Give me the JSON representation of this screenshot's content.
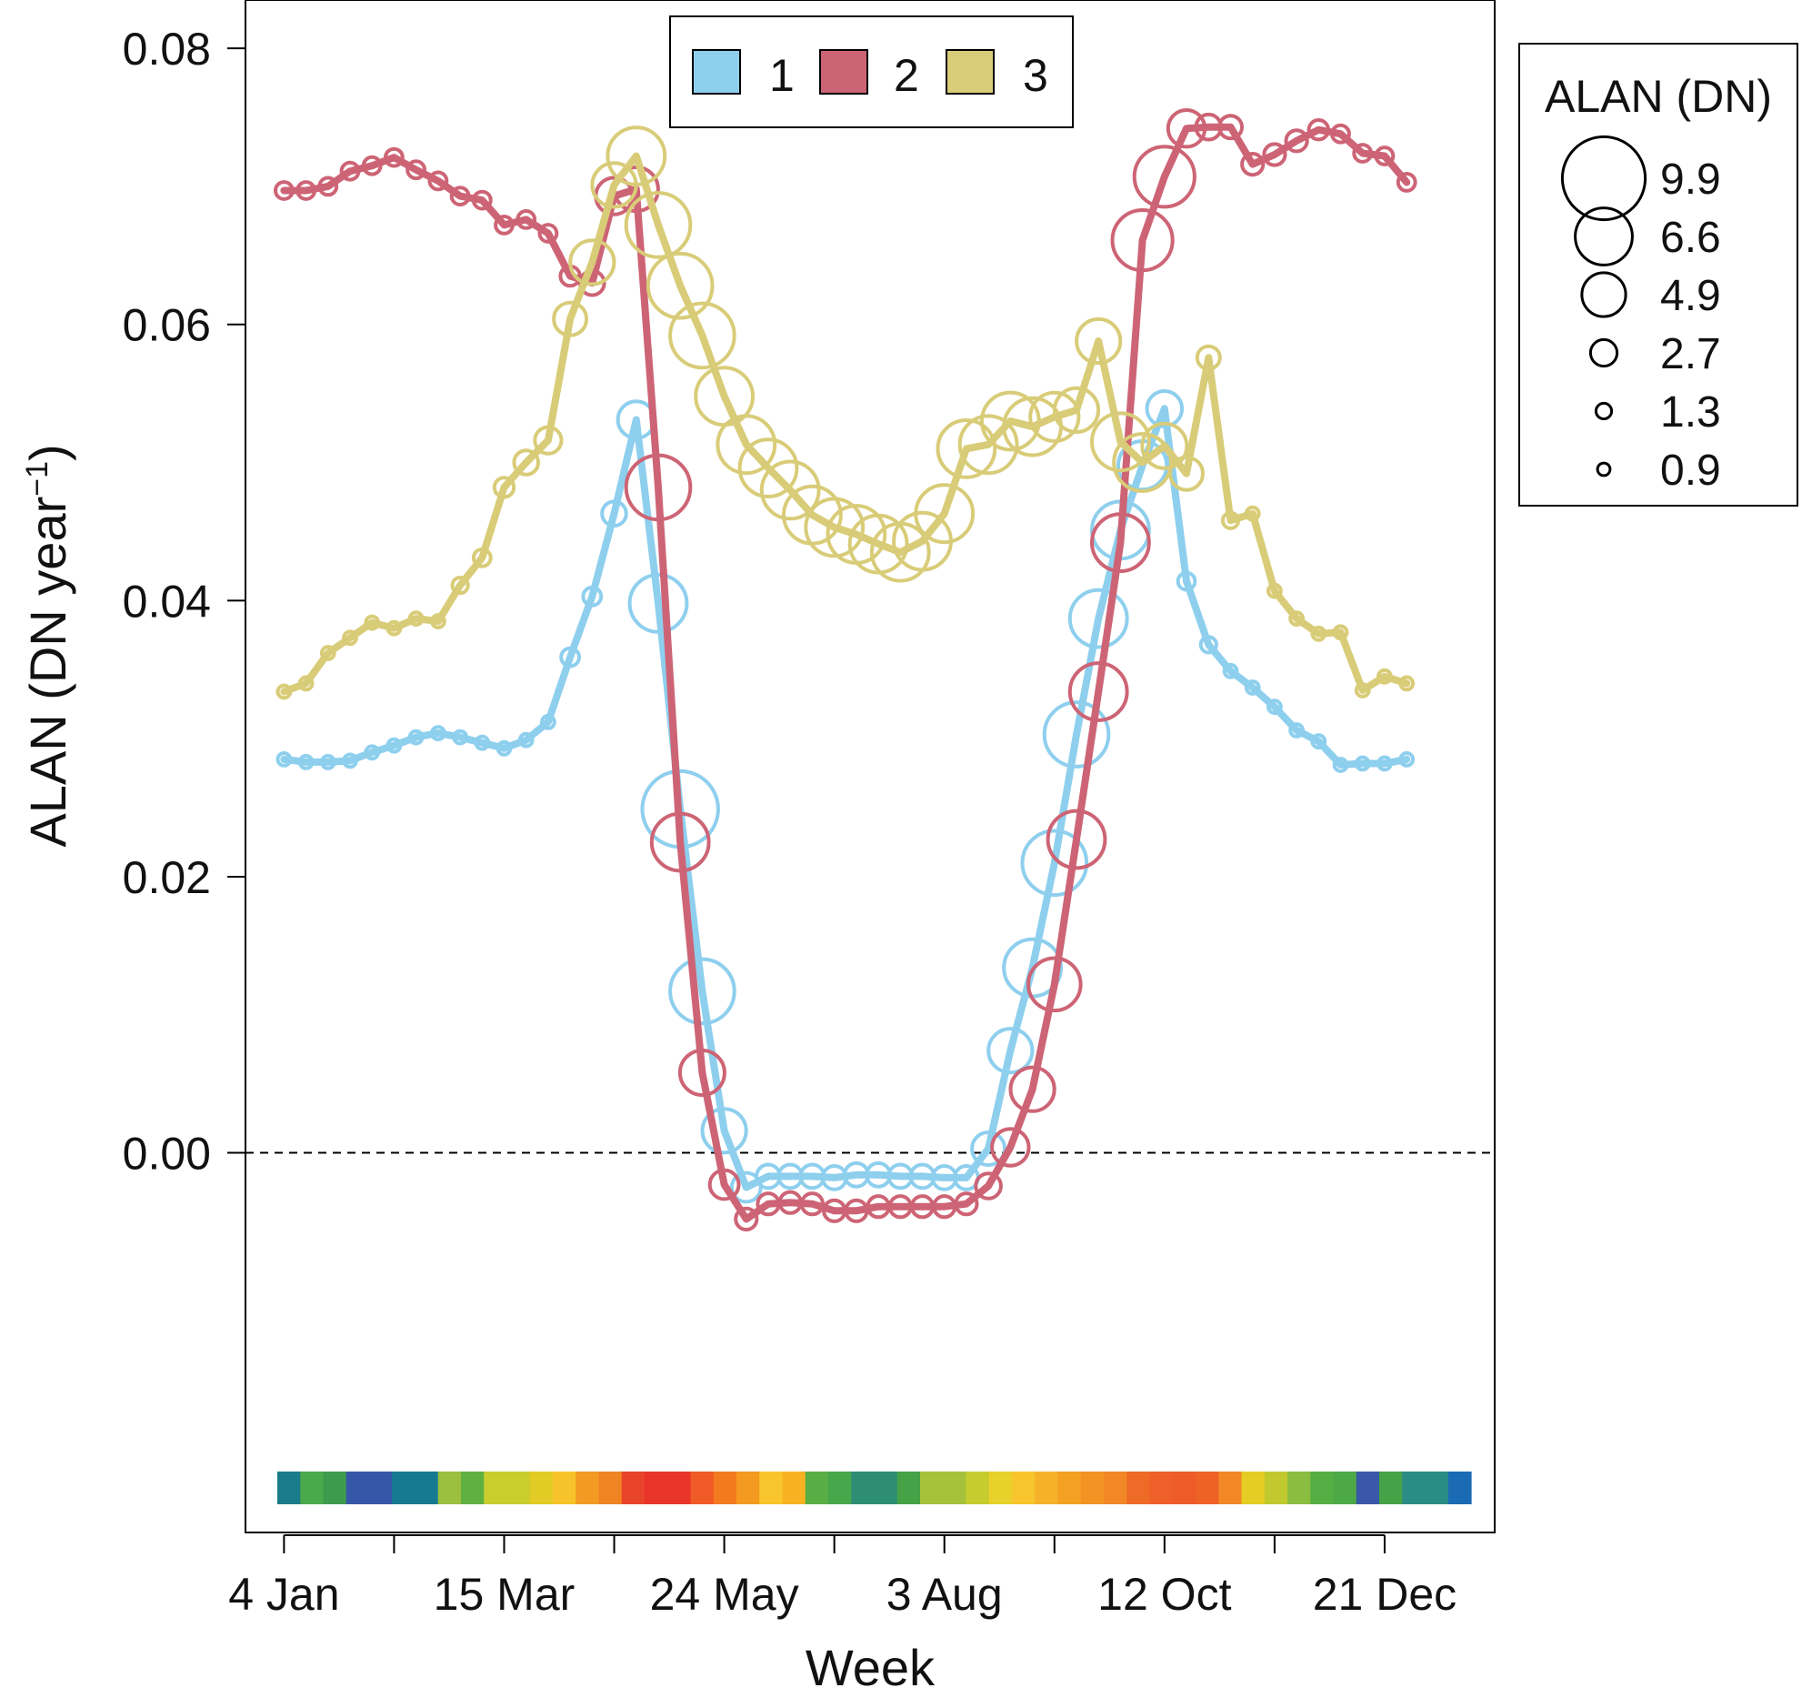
{
  "chart_data": {
    "type": "line",
    "xlabel": "Week",
    "ylabel_main": "ALAN (DN  year",
    "ylabel_sup": "−1",
    "ylabel_close": ")",
    "ylim": [
      -0.0275,
      0.0835
    ],
    "xlim": [
      -0.35,
      11.0
    ],
    "zero_line": 0,
    "yticks": [
      {
        "value": 0.0,
        "label": "0.00"
      },
      {
        "value": 0.02,
        "label": "0.02"
      },
      {
        "value": 0.04,
        "label": "0.04"
      },
      {
        "value": 0.06,
        "label": "0.06"
      },
      {
        "value": 0.08,
        "label": "0.08"
      }
    ],
    "xticks": [
      {
        "value": 0,
        "label": "4 Jan"
      },
      {
        "value": 1,
        "label": ""
      },
      {
        "value": 2,
        "label": "15 Mar"
      },
      {
        "value": 3,
        "label": ""
      },
      {
        "value": 4,
        "label": "24 May"
      },
      {
        "value": 5,
        "label": ""
      },
      {
        "value": 6,
        "label": "3 Aug"
      },
      {
        "value": 7,
        "label": ""
      },
      {
        "value": 8,
        "label": "12 Oct"
      },
      {
        "value": 9,
        "label": ""
      },
      {
        "value": 10,
        "label": "21 Dec"
      }
    ],
    "series_legend_title": "",
    "series": [
      {
        "name": "1",
        "color": "#8ecfee",
        "x": [
          0,
          0.2,
          0.4,
          0.6,
          0.8,
          1.0,
          1.2,
          1.4,
          1.6,
          1.8,
          2.0,
          2.2,
          2.4,
          2.6,
          2.8,
          3.0,
          3.2,
          3.4,
          3.6,
          3.8,
          4.0,
          4.2,
          4.4,
          4.6,
          4.8,
          5.0,
          5.2,
          5.4,
          5.6,
          5.8,
          6.0,
          6.2,
          6.4,
          6.6,
          6.8,
          7.0,
          7.2,
          7.4,
          7.6,
          7.8,
          8.0,
          8.2,
          8.4,
          8.6,
          8.8,
          9.0,
          9.2,
          9.4,
          9.6,
          9.8,
          10.0,
          10.2
        ],
        "y": [
          0.0285,
          0.0283,
          0.0283,
          0.0284,
          0.029,
          0.0295,
          0.0301,
          0.0304,
          0.0301,
          0.0297,
          0.0293,
          0.0299,
          0.0312,
          0.0359,
          0.0403,
          0.0463,
          0.0531,
          0.0398,
          0.0249,
          0.0117,
          0.0016,
          -0.0025,
          -0.0017,
          -0.0017,
          -0.0017,
          -0.0018,
          -0.0016,
          -0.0016,
          -0.0017,
          -0.0017,
          -0.0018,
          -0.0018,
          0.0003,
          0.0074,
          0.0134,
          0.021,
          0.0303,
          0.0387,
          0.0451,
          0.0498,
          0.0539,
          0.0414,
          0.0368,
          0.0349,
          0.0337,
          0.0323,
          0.0306,
          0.0298,
          0.0281,
          0.0282,
          0.0282,
          0.0285
        ],
        "sizes": [
          0.9,
          0.9,
          0.9,
          0.9,
          0.9,
          0.9,
          0.9,
          0.9,
          0.9,
          0.9,
          0.9,
          0.9,
          0.9,
          1.6,
          1.6,
          2.4,
          4.0,
          6.6,
          9.0,
          7.5,
          4.9,
          3.0,
          2.3,
          2.3,
          2.3,
          2.3,
          2.3,
          2.3,
          2.3,
          2.3,
          2.3,
          2.3,
          3.5,
          4.9,
          6.6,
          7.5,
          7.5,
          6.6,
          6.6,
          5.5,
          3.8,
          1.5,
          1.3,
          0.9,
          0.9,
          0.9,
          0.9,
          0.9,
          0.9,
          0.9,
          0.9,
          0.9
        ]
      },
      {
        "name": "2",
        "color": "#cd6475",
        "x": [
          0,
          0.2,
          0.4,
          0.6,
          0.8,
          1.0,
          1.2,
          1.4,
          1.6,
          1.8,
          2.0,
          2.2,
          2.4,
          2.6,
          2.8,
          3.0,
          3.2,
          3.4,
          3.6,
          3.8,
          4.0,
          4.2,
          4.4,
          4.6,
          4.8,
          5.0,
          5.2,
          5.4,
          5.6,
          5.8,
          6.0,
          6.2,
          6.4,
          6.6,
          6.8,
          7.0,
          7.2,
          7.4,
          7.6,
          7.8,
          8.0,
          8.2,
          8.4,
          8.6,
          8.8,
          9.0,
          9.2,
          9.4,
          9.6,
          9.8,
          10.0,
          10.2
        ],
        "y": [
          0.0697,
          0.0697,
          0.07,
          0.0711,
          0.0715,
          0.0721,
          0.0712,
          0.0704,
          0.0693,
          0.069,
          0.0672,
          0.0676,
          0.0666,
          0.0635,
          0.063,
          0.0693,
          0.0698,
          0.0482,
          0.0225,
          0.0058,
          -0.0023,
          -0.0048,
          -0.0037,
          -0.0036,
          -0.0037,
          -0.0042,
          -0.0042,
          -0.0039,
          -0.0039,
          -0.0039,
          -0.0039,
          -0.0037,
          -0.0024,
          0.0004,
          0.0046,
          0.0122,
          0.0227,
          0.0334,
          0.0442,
          0.0661,
          0.0707,
          0.0742,
          0.0743,
          0.0743,
          0.0716,
          0.0723,
          0.0733,
          0.0741,
          0.0738,
          0.0724,
          0.0722,
          0.0703
        ],
        "sizes": [
          1.5,
          1.5,
          1.5,
          1.5,
          1.5,
          1.5,
          1.5,
          1.5,
          1.5,
          1.5,
          1.5,
          1.5,
          1.5,
          1.8,
          2.4,
          4.0,
          4.9,
          7.5,
          6.6,
          5.0,
          3.0,
          2.0,
          2.0,
          2.0,
          2.0,
          2.0,
          2.0,
          2.0,
          2.0,
          2.0,
          2.0,
          2.0,
          2.5,
          4.0,
          4.9,
          6.0,
          6.6,
          6.6,
          6.6,
          7.0,
          7.0,
          4.0,
          2.5,
          2.2,
          2.0,
          2.0,
          2.0,
          1.8,
          1.5,
          1.5,
          1.5,
          1.5
        ]
      },
      {
        "name": "3",
        "color": "#d9cc78",
        "x": [
          0,
          0.2,
          0.4,
          0.6,
          0.8,
          1.0,
          1.2,
          1.4,
          1.6,
          1.8,
          2.0,
          2.2,
          2.4,
          2.6,
          2.8,
          3.0,
          3.2,
          3.4,
          3.6,
          3.8,
          4.0,
          4.2,
          4.4,
          4.6,
          4.8,
          5.0,
          5.2,
          5.4,
          5.6,
          5.8,
          6.0,
          6.2,
          6.4,
          6.6,
          6.8,
          7.0,
          7.2,
          7.4,
          7.6,
          7.8,
          8.0,
          8.2,
          8.4,
          8.6,
          8.8,
          9.0,
          9.2,
          9.4,
          9.6,
          9.8,
          10.0,
          10.2
        ],
        "y": [
          0.0334,
          0.034,
          0.0362,
          0.0373,
          0.0384,
          0.038,
          0.0387,
          0.0385,
          0.0411,
          0.0431,
          0.0482,
          0.05,
          0.0516,
          0.0604,
          0.0645,
          0.0701,
          0.0722,
          0.0672,
          0.0628,
          0.0592,
          0.0548,
          0.0513,
          0.0496,
          0.048,
          0.0462,
          0.0453,
          0.0448,
          0.0441,
          0.0435,
          0.0443,
          0.0463,
          0.051,
          0.0513,
          0.053,
          0.0526,
          0.0533,
          0.0538,
          0.0588,
          0.0515,
          0.05,
          0.0512,
          0.0492,
          0.0576,
          0.0458,
          0.0463,
          0.0407,
          0.0387,
          0.0376,
          0.0377,
          0.0335,
          0.0345,
          0.034
        ],
        "sizes": [
          0.9,
          0.9,
          0.9,
          0.9,
          0.9,
          0.9,
          0.9,
          0.9,
          1.3,
          1.5,
          1.8,
          2.4,
          2.7,
          3.5,
          4.9,
          4.9,
          6.6,
          7.5,
          7.5,
          7.5,
          6.6,
          6.6,
          6.6,
          6.6,
          6.6,
          6.6,
          6.6,
          6.6,
          6.6,
          6.6,
          6.6,
          6.6,
          6.6,
          6.6,
          6.6,
          5.5,
          4.9,
          4.9,
          6.6,
          6.6,
          5.0,
          3.5,
          2.2,
          1.3,
          0.9,
          0.9,
          0.9,
          0.9,
          0.9,
          0.9,
          0.9,
          0.9
        ]
      }
    ],
    "size_legend": {
      "title": "ALAN (DN)",
      "entries": [
        {
          "label": "9.9",
          "value": 9.9
        },
        {
          "label": "6.6",
          "value": 6.6
        },
        {
          "label": "4.9",
          "value": 4.9
        },
        {
          "label": "2.7",
          "value": 2.7
        },
        {
          "label": "1.3",
          "value": 1.3
        },
        {
          "label": "0.9",
          "value": 0.9
        }
      ]
    },
    "week_color_bar": [
      "#1a7b8a",
      "#4aa94a",
      "#3e9a4e",
      "#3756a8",
      "#3756a8",
      "#167a91",
      "#167a91",
      "#9bbf3e",
      "#5fb040",
      "#c9cd2e",
      "#c9cd2e",
      "#e2cb24",
      "#f6c32a",
      "#f39a25",
      "#f08423",
      "#e8442b",
      "#e8342a",
      "#e8342a",
      "#f05a26",
      "#f47a20",
      "#f59a21",
      "#f8c52c",
      "#f8b221",
      "#58ad45",
      "#48a74a",
      "#2e8e74",
      "#2e8e74",
      "#46a246",
      "#a6c23a",
      "#a6c23a",
      "#c7cc2e",
      "#e7d12a",
      "#f8c52c",
      "#f6b12b",
      "#f4a022",
      "#f39323",
      "#f18726",
      "#ee6a27",
      "#ee5f29",
      "#ee5b28",
      "#ef6227",
      "#f18726",
      "#e5cd24",
      "#c2c92f",
      "#8bbd40",
      "#55ae44",
      "#4da846",
      "#3a58a7",
      "#46a246",
      "#2a8c84",
      "#2a8c84",
      "#1a6ab4"
    ]
  }
}
